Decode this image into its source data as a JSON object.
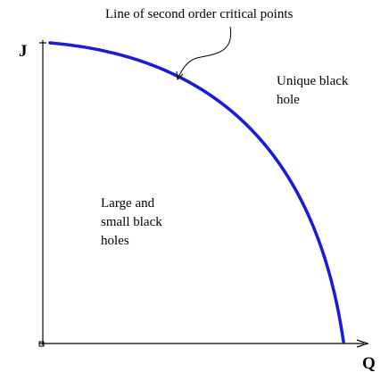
{
  "annotation": {
    "text": "Line of second order critical points"
  },
  "regions": {
    "right": {
      "line1": "Unique black",
      "line2": "hole"
    },
    "left": {
      "line1": "Large and",
      "line2": "small black",
      "line3": "holes"
    }
  },
  "axes": {
    "y_label": "J",
    "x_label": "Q"
  },
  "colors": {
    "curve": "#1a1adb",
    "axes": "#000000",
    "text": "#000000"
  }
}
